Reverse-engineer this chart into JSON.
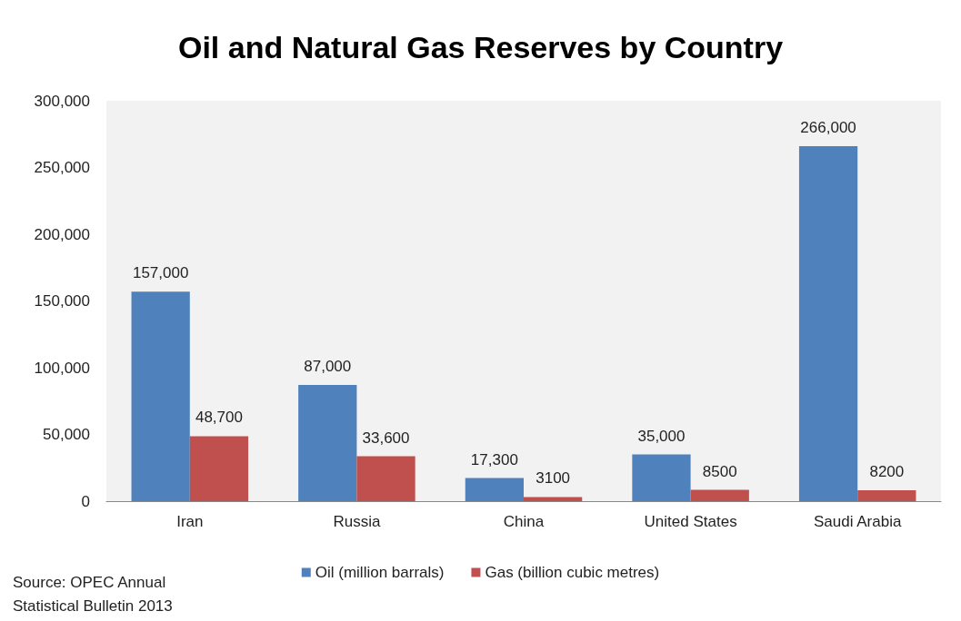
{
  "chart_data": {
    "type": "bar",
    "title": "Oil and Natural Gas Reserves by Country",
    "categories": [
      "Iran",
      "Russia",
      "China",
      "United States",
      "Saudi Arabia"
    ],
    "series": [
      {
        "name": "Oil (million barrals)",
        "color": "#4f81bd",
        "values": [
          157000,
          87000,
          17300,
          35000,
          266000
        ],
        "value_labels": [
          "157,000",
          "87,000",
          "17,300",
          "35,000",
          "266,000"
        ]
      },
      {
        "name": "Gas (billion cubic metres)",
        "color": "#c0504d",
        "values": [
          48700,
          33600,
          3100,
          8500,
          8200
        ],
        "value_labels": [
          "48,700",
          "33,600",
          "3100",
          "8500",
          "8200"
        ]
      }
    ],
    "ylim": [
      0,
      300000
    ],
    "yticks": [
      0,
      {
        "value": 50000,
        "label": "50,000"
      },
      {
        "value": 100000,
        "label": "100,000"
      },
      {
        "value": 150000,
        "label": "150,000"
      },
      {
        "value": 200000,
        "label": "200,000"
      },
      {
        "value": 250000,
        "label": "250,000"
      },
      {
        "value": 300000,
        "label": "300,000"
      }
    ],
    "grid": false,
    "legend": "bottom",
    "annotations": [
      "Source: OPEC Annual\nStatistical Bulletin 2013"
    ]
  }
}
